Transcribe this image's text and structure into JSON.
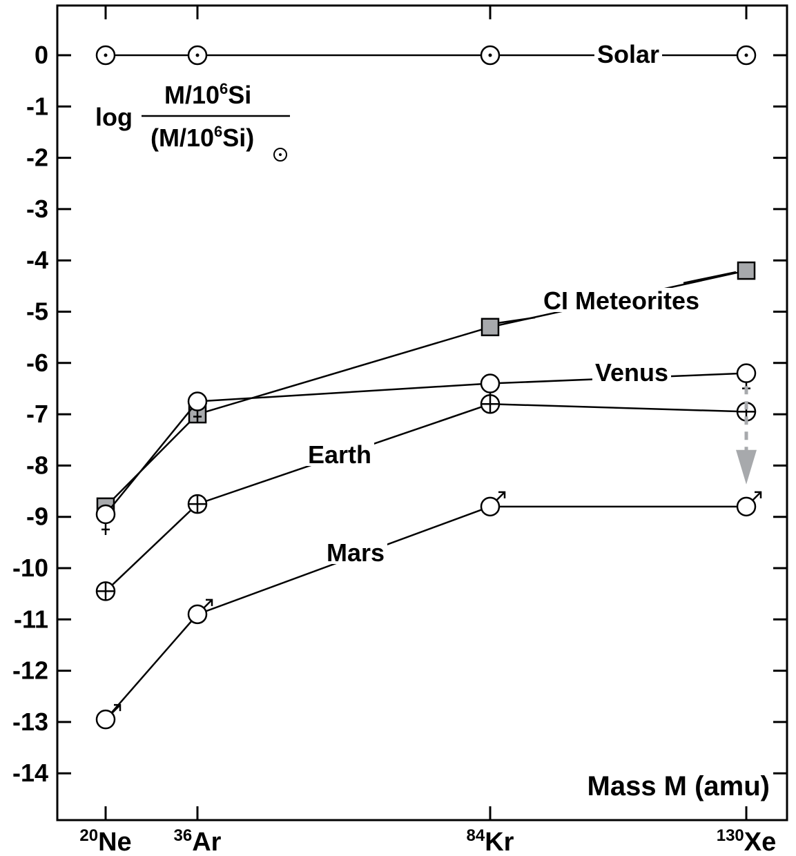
{
  "chart_data": {
    "type": "line",
    "ylabel": {
      "prefix": "log",
      "numerator_a": "M/10",
      "numerator_sup": "6",
      "numerator_b": "Si",
      "denominator_a": "(M/10",
      "denominator_sup": "6",
      "denominator_b": "Si)",
      "sun_subscript": "⊙"
    },
    "xlabel": "Mass M (amu)",
    "ylim": [
      -15,
      1
    ],
    "yticks": [
      0,
      -1,
      -2,
      -3,
      -4,
      -5,
      -6,
      -7,
      -8,
      -9,
      -10,
      -11,
      -12,
      -13,
      -14
    ],
    "ytick_labels": [
      "0",
      "-1",
      "-2",
      "-3",
      "-4",
      "-5",
      "-6",
      "-7",
      "-8",
      "-9",
      "-10",
      "-11",
      "-12",
      "-13",
      "-14"
    ],
    "categories": [
      {
        "name": "Ne",
        "mass_number": "20",
        "mass": 20
      },
      {
        "name": "Ar",
        "mass_number": "36",
        "mass": 36
      },
      {
        "name": "Kr",
        "mass_number": "84",
        "mass": 84
      },
      {
        "name": "Xe",
        "mass_number": "130",
        "mass": 130
      }
    ],
    "series": [
      {
        "name": "Solar",
        "marker": "sun",
        "values": [
          0,
          0,
          0,
          0
        ]
      },
      {
        "name": "CI Meteorites",
        "marker": "square",
        "values": [
          -8.8,
          -7.0,
          -5.3,
          -4.2
        ]
      },
      {
        "name": "Venus",
        "marker": "venus",
        "values": [
          -8.95,
          -6.75,
          -6.4,
          -6.2
        ]
      },
      {
        "name": "Earth",
        "marker": "earth",
        "values": [
          -10.45,
          -8.75,
          -6.8,
          -6.95
        ]
      },
      {
        "name": "Mars",
        "marker": "mars",
        "values": [
          -12.95,
          -10.9,
          -8.8,
          -8.8
        ]
      }
    ],
    "annotation": {
      "type": "dashed-arrow",
      "from_value": -6.45,
      "to_value": -8.3,
      "at_category": "Xe"
    },
    "colors": {
      "axis": "#000000",
      "marker_fill_square": "#a7a9ac",
      "arrow": "#a7a9ac",
      "marker_fill": "#ffffff"
    },
    "grid": false
  }
}
